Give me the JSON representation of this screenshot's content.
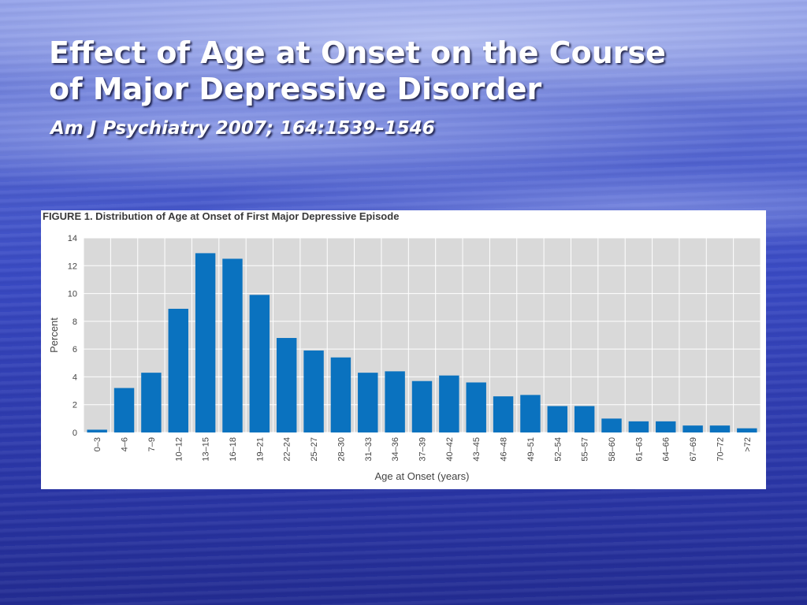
{
  "slide": {
    "title_line1": "Effect of Age at Onset on the Course",
    "title_line2": "of Major Depressive Disorder",
    "citation": "Am J Psychiatry 2007; 164:1539–1546"
  },
  "figure": {
    "caption": "FIGURE 1. Distribution of Age at Onset of First Major Depressive Episode"
  },
  "colors": {
    "bar": "#0a72bf",
    "plot_background": "#d9d9d9",
    "gridline": "#ffffff",
    "axis_text": "#444444"
  },
  "chart_data": {
    "type": "bar",
    "title": "",
    "xlabel": "Age at Onset (years)",
    "ylabel": "Percent",
    "ylim": [
      0,
      14
    ],
    "yticks": [
      0,
      2,
      4,
      6,
      8,
      10,
      12,
      14
    ],
    "grid": true,
    "legend": "none",
    "categories": [
      "0–3",
      "4–6",
      "7–9",
      "10–12",
      "13–15",
      "16–18",
      "19–21",
      "22–24",
      "25–27",
      "28–30",
      "31–33",
      "34–36",
      "37–39",
      "40–42",
      "43–45",
      "46–48",
      "49–51",
      "52–54",
      "55–57",
      "58–60",
      "61–63",
      "64–66",
      "67–69",
      "70–72",
      ">72"
    ],
    "values": [
      0.2,
      3.2,
      4.3,
      8.9,
      12.9,
      12.5,
      9.9,
      6.8,
      5.9,
      5.4,
      4.3,
      4.4,
      3.7,
      4.1,
      3.6,
      2.6,
      2.7,
      1.9,
      1.9,
      1.0,
      0.8,
      0.8,
      0.5,
      0.5,
      0.3
    ]
  }
}
